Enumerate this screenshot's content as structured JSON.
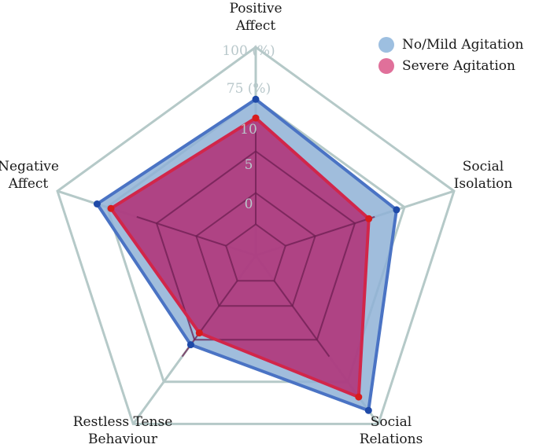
{
  "chart_data": {
    "type": "radar",
    "axes": [
      [
        "Positive",
        "Affect"
      ],
      [
        "Social",
        "Isolation"
      ],
      [
        "Social",
        "Relations"
      ],
      [
        "Restless Tense",
        "Behaviour"
      ],
      [
        "Negative",
        "Affect"
      ]
    ],
    "tick_labels": [
      "0",
      "5",
      "10",
      "75 (%)",
      "100 (%)"
    ],
    "series": [
      {
        "name": "No/Mild Agitation",
        "values": [
          75,
          71,
          92,
          53,
          80
        ],
        "fill": "#8fb2d6",
        "stroke": "#4a73c4",
        "marker": "#1f4aa8"
      },
      {
        "name": "Severe Agitation",
        "values": [
          66,
          57,
          84,
          46,
          73
        ],
        "fill": "#b3246e",
        "stroke": "#d1264a",
        "marker": "#d81c1c"
      }
    ],
    "legend": {
      "position": "top-right",
      "entries": [
        {
          "label": "No/Mild Agitation",
          "color": "#9dbfe0"
        },
        {
          "label": "Severe Agitation",
          "color": "#e0709a"
        }
      ]
    },
    "grid": true,
    "colors": {
      "outer_grid": "#b5c9c8",
      "inner_grid": "#6e1f52",
      "tick_text": "#b9c8cb"
    }
  }
}
